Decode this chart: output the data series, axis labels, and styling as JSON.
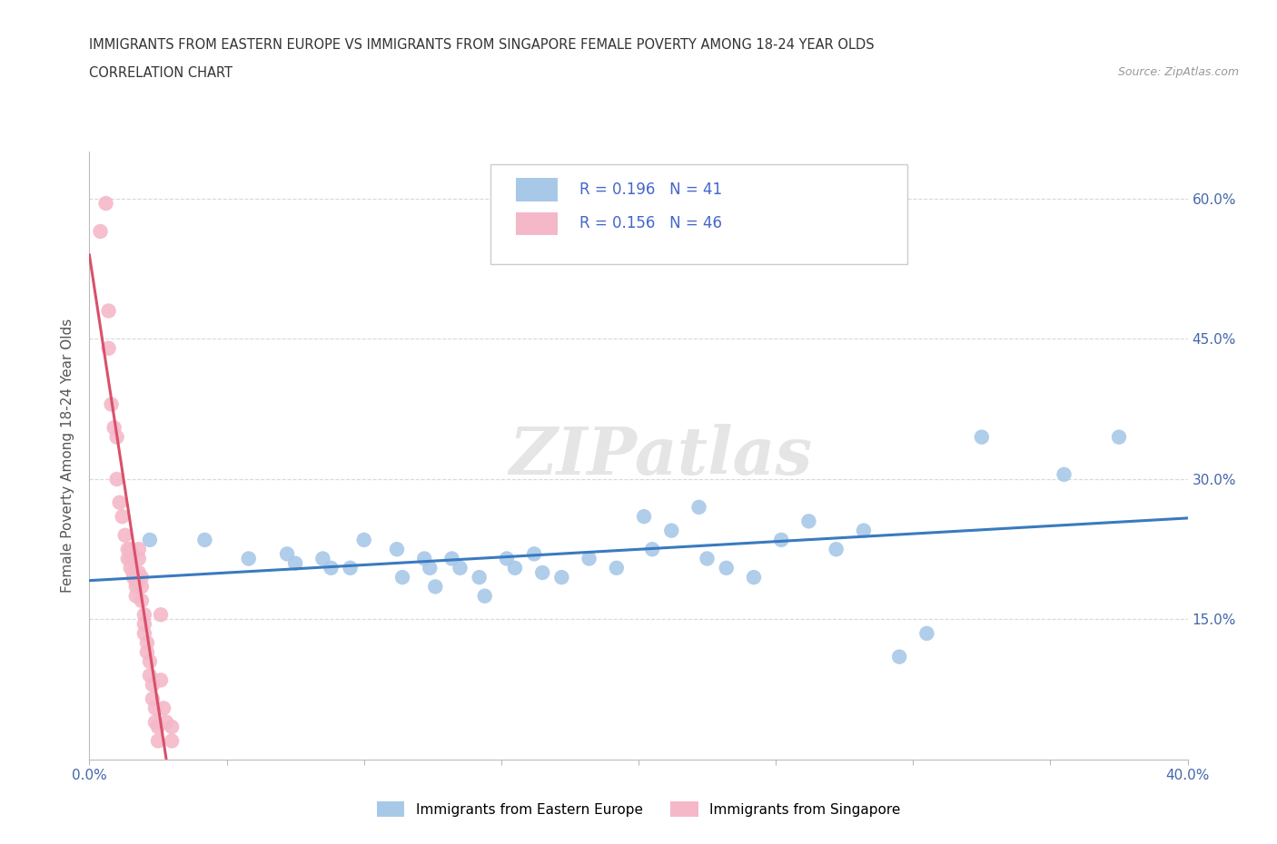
{
  "title1": "IMMIGRANTS FROM EASTERN EUROPE VS IMMIGRANTS FROM SINGAPORE FEMALE POVERTY AMONG 18-24 YEAR OLDS",
  "title2": "CORRELATION CHART",
  "source": "Source: ZipAtlas.com",
  "ylabel": "Female Poverty Among 18-24 Year Olds",
  "xlim": [
    0.0,
    0.4
  ],
  "ylim": [
    0.0,
    0.65
  ],
  "ytick_positions": [
    0.0,
    0.15,
    0.3,
    0.45,
    0.6
  ],
  "yticklabels_right": [
    "",
    "15.0%",
    "30.0%",
    "45.0%",
    "60.0%"
  ],
  "R_blue": 0.196,
  "N_blue": 41,
  "R_pink": 0.156,
  "N_pink": 46,
  "legend_label_blue": "Immigrants from Eastern Europe",
  "legend_label_pink": "Immigrants from Singapore",
  "blue_color": "#a8c8e8",
  "pink_color": "#f4b8c8",
  "blue_line_color": "#3a7abf",
  "pink_line_color": "#d9506a",
  "pink_line_dashed_color": "#e8a0b0",
  "watermark": "ZIPatlas",
  "background_color": "#ffffff",
  "grid_color": "#d8d8d8",
  "blue_scatter": [
    [
      0.022,
      0.235
    ],
    [
      0.042,
      0.235
    ],
    [
      0.058,
      0.215
    ],
    [
      0.072,
      0.22
    ],
    [
      0.075,
      0.21
    ],
    [
      0.085,
      0.215
    ],
    [
      0.088,
      0.205
    ],
    [
      0.095,
      0.205
    ],
    [
      0.1,
      0.235
    ],
    [
      0.112,
      0.225
    ],
    [
      0.114,
      0.195
    ],
    [
      0.122,
      0.215
    ],
    [
      0.124,
      0.205
    ],
    [
      0.126,
      0.185
    ],
    [
      0.132,
      0.215
    ],
    [
      0.135,
      0.205
    ],
    [
      0.142,
      0.195
    ],
    [
      0.144,
      0.175
    ],
    [
      0.152,
      0.215
    ],
    [
      0.155,
      0.205
    ],
    [
      0.162,
      0.22
    ],
    [
      0.165,
      0.2
    ],
    [
      0.172,
      0.195
    ],
    [
      0.182,
      0.215
    ],
    [
      0.192,
      0.205
    ],
    [
      0.202,
      0.26
    ],
    [
      0.205,
      0.225
    ],
    [
      0.212,
      0.245
    ],
    [
      0.222,
      0.27
    ],
    [
      0.225,
      0.215
    ],
    [
      0.232,
      0.205
    ],
    [
      0.242,
      0.195
    ],
    [
      0.252,
      0.235
    ],
    [
      0.262,
      0.255
    ],
    [
      0.272,
      0.225
    ],
    [
      0.282,
      0.245
    ],
    [
      0.295,
      0.11
    ],
    [
      0.305,
      0.135
    ],
    [
      0.325,
      0.345
    ],
    [
      0.355,
      0.305
    ],
    [
      0.375,
      0.345
    ]
  ],
  "pink_scatter": [
    [
      0.004,
      0.565
    ],
    [
      0.006,
      0.595
    ],
    [
      0.007,
      0.48
    ],
    [
      0.007,
      0.44
    ],
    [
      0.008,
      0.38
    ],
    [
      0.009,
      0.355
    ],
    [
      0.01,
      0.345
    ],
    [
      0.01,
      0.3
    ],
    [
      0.011,
      0.275
    ],
    [
      0.012,
      0.26
    ],
    [
      0.013,
      0.24
    ],
    [
      0.014,
      0.225
    ],
    [
      0.014,
      0.215
    ],
    [
      0.015,
      0.225
    ],
    [
      0.015,
      0.215
    ],
    [
      0.015,
      0.205
    ],
    [
      0.016,
      0.2
    ],
    [
      0.016,
      0.195
    ],
    [
      0.017,
      0.19
    ],
    [
      0.017,
      0.185
    ],
    [
      0.017,
      0.175
    ],
    [
      0.018,
      0.225
    ],
    [
      0.018,
      0.215
    ],
    [
      0.018,
      0.2
    ],
    [
      0.019,
      0.195
    ],
    [
      0.019,
      0.185
    ],
    [
      0.019,
      0.17
    ],
    [
      0.02,
      0.155
    ],
    [
      0.02,
      0.145
    ],
    [
      0.02,
      0.135
    ],
    [
      0.021,
      0.125
    ],
    [
      0.021,
      0.115
    ],
    [
      0.022,
      0.105
    ],
    [
      0.022,
      0.09
    ],
    [
      0.023,
      0.08
    ],
    [
      0.023,
      0.065
    ],
    [
      0.024,
      0.055
    ],
    [
      0.024,
      0.04
    ],
    [
      0.025,
      0.035
    ],
    [
      0.025,
      0.02
    ],
    [
      0.026,
      0.155
    ],
    [
      0.026,
      0.085
    ],
    [
      0.027,
      0.055
    ],
    [
      0.028,
      0.04
    ],
    [
      0.03,
      0.035
    ],
    [
      0.03,
      0.02
    ]
  ]
}
